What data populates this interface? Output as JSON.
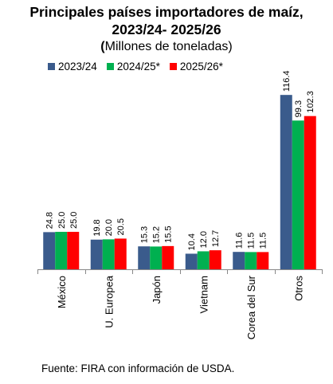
{
  "header": {
    "title_line1": "Principales países importadores de maíz,",
    "title_line2": "2023/24- 2025/26",
    "subtitle_paren": "(",
    "subtitle_text": "Millones de toneladas)"
  },
  "footer": {
    "source": "Fuente: FIRA con información de USDA."
  },
  "colors": {
    "2023/24": "#3A5B8C",
    "2024/25*": "#00B050",
    "2025/26*": "#FF0000"
  },
  "chart_data": {
    "type": "bar",
    "title": "Principales países importadores de maíz, 2023/24- 2025/26",
    "subtitle": "(Millones de toneladas)",
    "categories": [
      "México",
      "U. Europea",
      "Japón",
      "Vietnam",
      "Corea del Sur",
      "Otros"
    ],
    "series": [
      {
        "name": "2023/24",
        "values": [
          24.8,
          19.8,
          15.3,
          10.4,
          11.6,
          116.4
        ]
      },
      {
        "name": "2024/25*",
        "values": [
          25.0,
          20.0,
          15.2,
          12.0,
          11.5,
          99.3
        ]
      },
      {
        "name": "2025/26*",
        "values": [
          25.0,
          20.5,
          15.5,
          12.7,
          11.5,
          102.3
        ]
      }
    ],
    "ylim": [
      0,
      125
    ],
    "legend_position": "top",
    "grid": false
  }
}
